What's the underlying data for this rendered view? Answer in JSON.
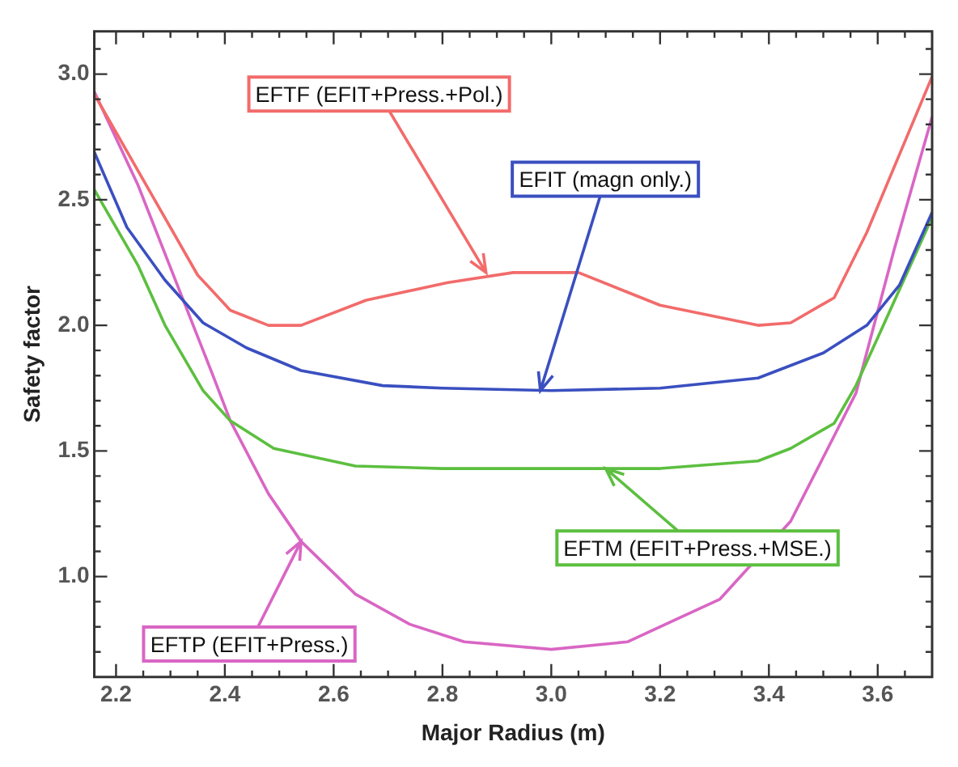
{
  "chart_data": {
    "type": "line",
    "xlabel": "Major Radius (m)",
    "ylabel": "Safety factor",
    "xlim": [
      2.16,
      3.7
    ],
    "ylim": [
      0.6,
      3.17
    ],
    "xticks": [
      2.2,
      {
        "value": 2.25,
        "label": null
      },
      {
        "value": 2.3,
        "label": null
      },
      {
        "value": 2.35,
        "label": null
      },
      2.4,
      {
        "value": 2.45,
        "label": null
      },
      {
        "value": 2.5,
        "label": null
      },
      {
        "value": 2.55,
        "label": null
      },
      2.6,
      {
        "value": 2.65,
        "label": null
      },
      {
        "value": 2.7,
        "label": null
      },
      {
        "value": 2.75,
        "label": null
      },
      2.8,
      {
        "value": 2.85,
        "label": null
      },
      {
        "value": 2.9,
        "label": null
      },
      {
        "value": 2.95,
        "label": null
      },
      {
        "value": 3.0,
        "label": "3.0"
      },
      {
        "value": 3.05,
        "label": null
      },
      {
        "value": 3.1,
        "label": null
      },
      {
        "value": 3.15,
        "label": null
      },
      3.2,
      {
        "value": 3.25,
        "label": null
      },
      {
        "value": 3.3,
        "label": null
      },
      {
        "value": 3.35,
        "label": null
      },
      3.4,
      {
        "value": 3.45,
        "label": null
      },
      {
        "value": 3.5,
        "label": null
      },
      {
        "value": 3.55,
        "label": null
      },
      3.6,
      {
        "value": 3.65,
        "label": null
      }
    ],
    "yticks": [
      {
        "value": 0.7,
        "label": null
      },
      {
        "value": 0.8,
        "label": null
      },
      {
        "value": 0.9,
        "label": null
      },
      {
        "value": 1.0,
        "label": "1.0"
      },
      {
        "value": 1.1,
        "label": null
      },
      {
        "value": 1.2,
        "label": null
      },
      {
        "value": 1.3,
        "label": null
      },
      {
        "value": 1.4,
        "label": null
      },
      1.5,
      {
        "value": 1.6,
        "label": null
      },
      {
        "value": 1.7,
        "label": null
      },
      {
        "value": 1.8,
        "label": null
      },
      {
        "value": 1.9,
        "label": null
      },
      {
        "value": 2.0,
        "label": "2.0"
      },
      {
        "value": 2.1,
        "label": null
      },
      {
        "value": 2.2,
        "label": null
      },
      {
        "value": 2.3,
        "label": null
      },
      {
        "value": 2.4,
        "label": null
      },
      2.5,
      {
        "value": 2.6,
        "label": null
      },
      {
        "value": 2.7,
        "label": null
      },
      {
        "value": 2.8,
        "label": null
      },
      {
        "value": 2.9,
        "label": null
      },
      {
        "value": 3.0,
        "label": "3.0"
      },
      {
        "value": 3.1,
        "label": null
      }
    ],
    "grid": false,
    "legend": false,
    "marker": "none",
    "line_style": "solid",
    "series": [
      {
        "color": "#f26b6b",
        "x": [
          2.16,
          2.35,
          2.41,
          2.48,
          2.54,
          2.66,
          2.81,
          2.93,
          3.05,
          3.2,
          3.38,
          3.44,
          3.52,
          3.58,
          3.7
        ],
        "values": [
          2.92,
          2.2,
          2.06,
          2.0,
          2.0,
          2.1,
          2.17,
          2.21,
          2.21,
          2.08,
          2.0,
          2.01,
          2.11,
          2.37,
          2.99
        ]
      },
      {
        "color": "#3a4fc0",
        "x": [
          2.16,
          2.22,
          2.29,
          2.36,
          2.44,
          2.54,
          2.69,
          2.8,
          3.0,
          3.2,
          3.38,
          3.5,
          3.58,
          3.64,
          3.7
        ],
        "values": [
          2.69,
          2.39,
          2.18,
          2.01,
          1.91,
          1.82,
          1.76,
          1.75,
          1.74,
          1.75,
          1.79,
          1.89,
          2.0,
          2.16,
          2.45
        ]
      },
      {
        "color": "#5cbf3f",
        "x": [
          2.16,
          2.24,
          2.29,
          2.36,
          2.41,
          2.49,
          2.64,
          2.8,
          3.0,
          3.2,
          3.38,
          3.44,
          3.52,
          3.56,
          3.6,
          3.7
        ],
        "values": [
          2.54,
          2.24,
          2.0,
          1.74,
          1.62,
          1.51,
          1.44,
          1.43,
          1.43,
          1.43,
          1.46,
          1.51,
          1.61,
          1.76,
          1.95,
          2.43
        ]
      },
      {
        "color": "#d966c4",
        "x": [
          2.16,
          2.24,
          2.38,
          2.41,
          2.48,
          2.54,
          2.64,
          2.74,
          2.84,
          3.0,
          3.14,
          3.31,
          3.44,
          3.56,
          3.63,
          3.7
        ],
        "values": [
          2.93,
          2.56,
          1.79,
          1.62,
          1.33,
          1.14,
          0.93,
          0.81,
          0.74,
          0.71,
          0.74,
          0.91,
          1.22,
          1.73,
          2.3,
          2.83
        ]
      }
    ],
    "annotations": [
      {
        "text": "EFTF (EFIT+Press.+Pol.)",
        "x": 2.88,
        "y": 2.21
      },
      {
        "text": "EFIT (magn only.)",
        "x": 2.98,
        "y": 1.74
      },
      {
        "text": "EFTM (EFIT+Press.+MSE.)",
        "x": 3.1,
        "y": 1.43
      },
      {
        "text": "EFTP (EFIT+Press.)",
        "x": 2.54,
        "y": 1.14
      }
    ]
  }
}
